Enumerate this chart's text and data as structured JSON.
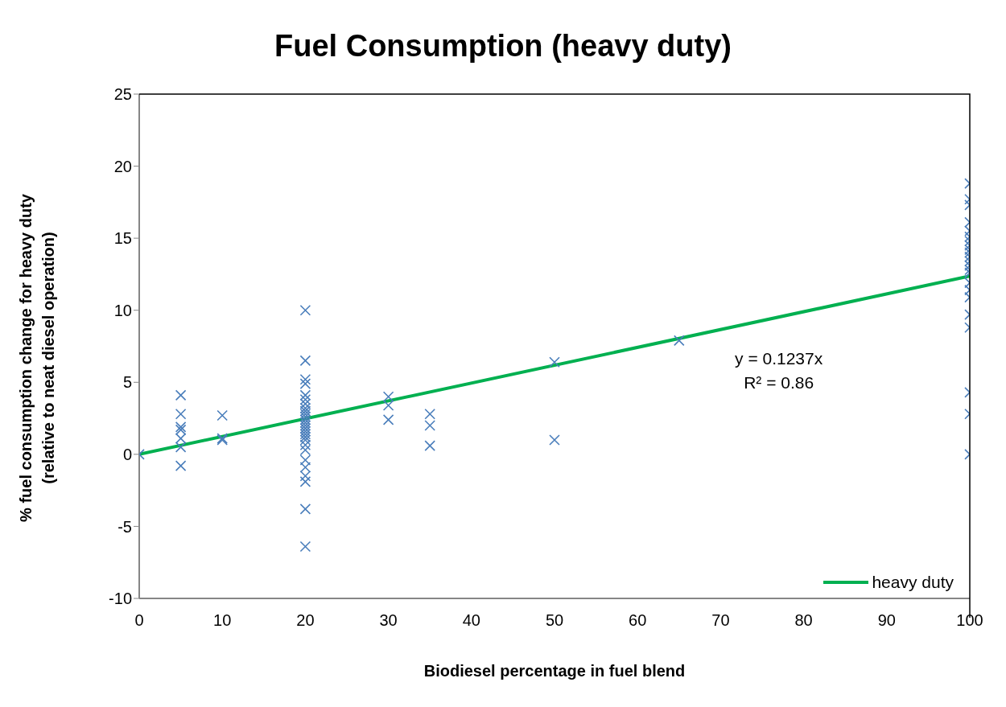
{
  "chart_data": {
    "type": "scatter",
    "title": "Fuel Consumption (heavy duty)",
    "xlabel": "Biodiesel percentage in fuel blend",
    "ylabel": "% fuel consumption change for heavy duty\n(relative to neat diesel operation)",
    "xlim": [
      0,
      100
    ],
    "xticks": [
      0,
      10,
      20,
      30,
      40,
      50,
      60,
      70,
      80,
      90,
      100
    ],
    "ylim": [
      -10,
      25
    ],
    "yticks": [
      -10,
      -5,
      0,
      5,
      10,
      15,
      20,
      25
    ],
    "grid": false,
    "legend": "bottom right",
    "series": [
      {
        "marker": "cross",
        "color": "#4a7ebb",
        "x": [
          0,
          5,
          5,
          5,
          5,
          5,
          5,
          5,
          10,
          10,
          10,
          20,
          20,
          20,
          20,
          20,
          20,
          20,
          20,
          20,
          20,
          20,
          20,
          20,
          20,
          20,
          20,
          20,
          20,
          20,
          20,
          20,
          20,
          20,
          20,
          20,
          20,
          20,
          30,
          30,
          30,
          35,
          35,
          35,
          50,
          50,
          65,
          100,
          100,
          100,
          100,
          100,
          100,
          100,
          100,
          100,
          100,
          100,
          100,
          100,
          100,
          100,
          100,
          100,
          100,
          100,
          100,
          100,
          100,
          100
        ],
        "values": [
          0,
          4.1,
          2.8,
          1.9,
          1.7,
          1.1,
          0.5,
          -0.8,
          2.7,
          1.1,
          1.0,
          10.0,
          6.5,
          5.2,
          4.9,
          4.1,
          3.8,
          3.5,
          3.2,
          3.0,
          2.8,
          2.6,
          2.4,
          2.2,
          2.0,
          1.8,
          1.6,
          1.4,
          1.2,
          1.0,
          0.65,
          0.3,
          -0.4,
          -0.9,
          -1.5,
          -1.9,
          -3.8,
          -6.4,
          4.0,
          3.4,
          2.4,
          2.8,
          2.0,
          0.6,
          6.4,
          1.0,
          7.9,
          18.8,
          17.7,
          17.3,
          16.1,
          15.5,
          15.1,
          14.8,
          14.5,
          14.2,
          14.0,
          13.7,
          13.4,
          13.1,
          12.8,
          12.6,
          11.9,
          11.4,
          10.9,
          9.7,
          8.8,
          4.3,
          2.8,
          0
        ]
      },
      {
        "type": "line",
        "name": "heavy duty",
        "color": "#00b050",
        "x": [
          0,
          100
        ],
        "values": [
          0,
          12.37
        ]
      }
    ],
    "annotations": [
      "y = 0.1237x",
      "R² = 0.86"
    ]
  }
}
